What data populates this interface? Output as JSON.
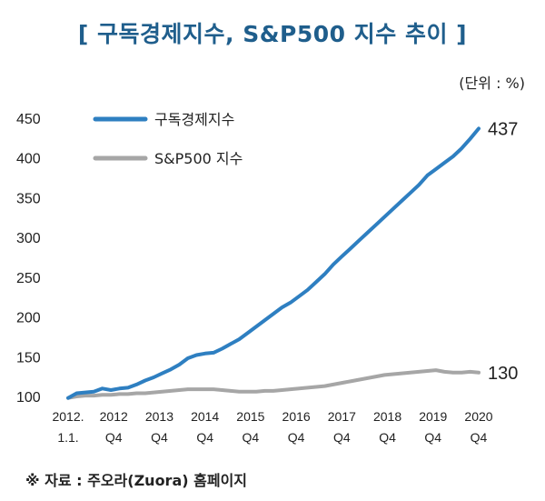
{
  "title": "[ 구독경제지수, S&P500 지수 추이 ]",
  "unit": "(단위 : %)",
  "source": "※ 자료 : 주오라(Zuora) 홈페이지",
  "chart_data": {
    "type": "line",
    "ylim": [
      100,
      450
    ],
    "yticks": [
      100,
      150,
      200,
      250,
      300,
      350,
      400,
      450
    ],
    "x_ticks": [
      {
        "line1": "2012.",
        "line2": "1.1."
      },
      {
        "line1": "2012",
        "line2": "Q4"
      },
      {
        "line1": "2013",
        "line2": "Q4"
      },
      {
        "line1": "2014",
        "line2": "Q4"
      },
      {
        "line1": "2015",
        "line2": "Q4"
      },
      {
        "line1": "2016",
        "line2": "Q4"
      },
      {
        "line1": "2017",
        "line2": "Q4"
      },
      {
        "line1": "2018",
        "line2": "Q4"
      },
      {
        "line1": "2019",
        "line2": "Q4"
      },
      {
        "line1": "2020",
        "line2": "Q4"
      }
    ],
    "series": [
      {
        "name": "구독경제지수",
        "color": "#2e7fc1",
        "end_label": "437",
        "values": [
          98,
          104,
          105,
          106,
          110,
          108,
          110,
          111,
          115,
          120,
          124,
          129,
          134,
          140,
          148,
          152,
          154,
          155,
          160,
          166,
          172,
          180,
          188,
          196,
          204,
          212,
          218,
          226,
          234,
          244,
          254,
          266,
          276,
          286,
          296,
          306,
          316,
          326,
          336,
          346,
          356,
          366,
          378,
          386,
          394,
          402,
          412,
          424,
          437
        ]
      },
      {
        "name": "S&P500 지수",
        "color": "#a6a6a6",
        "end_label": "130",
        "values": [
          98,
          100,
          101,
          101,
          102,
          102,
          103,
          103,
          104,
          104,
          105,
          106,
          107,
          108,
          109,
          109,
          109,
          109,
          108,
          107,
          106,
          106,
          106,
          107,
          107,
          108,
          109,
          110,
          111,
          112,
          113,
          115,
          117,
          119,
          121,
          123,
          125,
          127,
          128,
          129,
          130,
          131,
          132,
          133,
          131,
          130,
          130,
          131,
          130
        ]
      }
    ]
  }
}
